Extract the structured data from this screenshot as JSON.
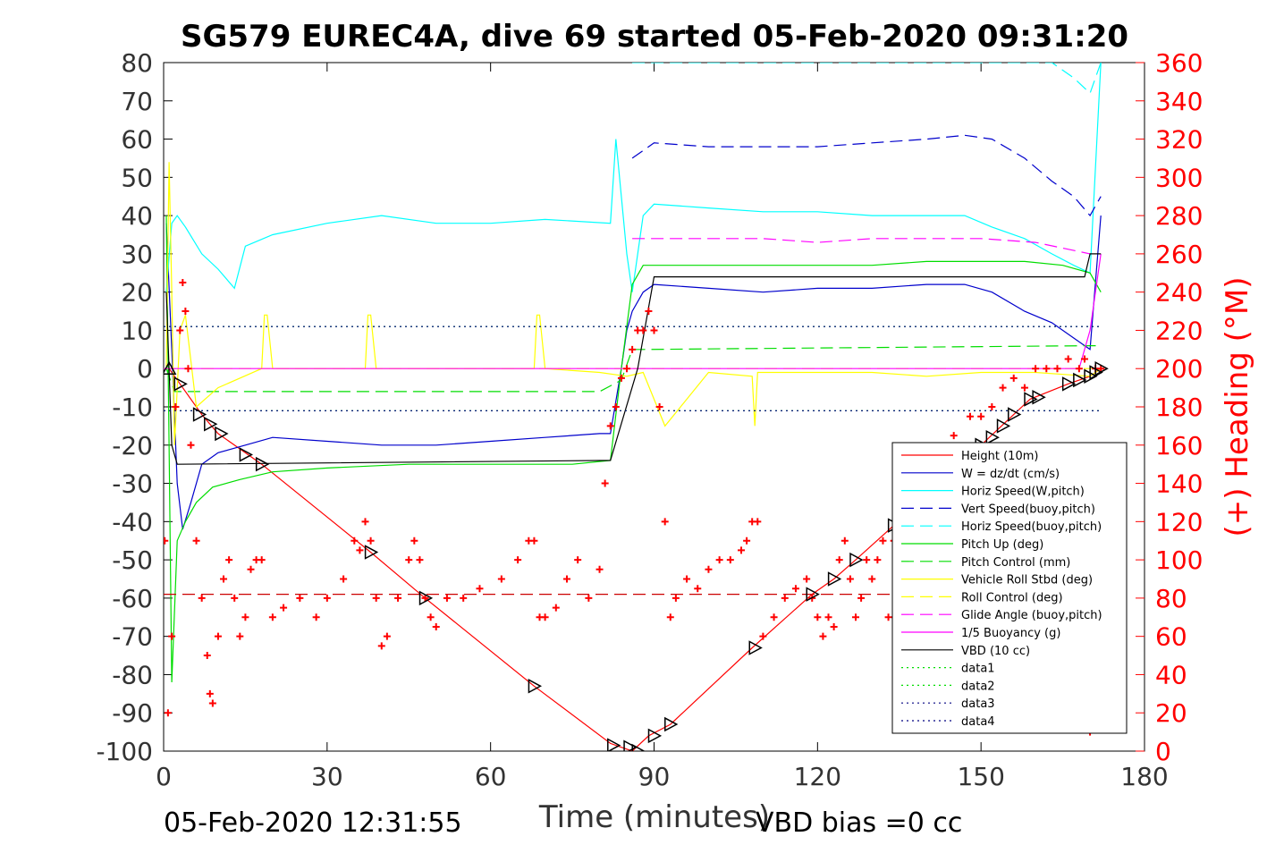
{
  "chart_data": {
    "type": "line",
    "title": "SG579 EUREC4A, dive 69 started 05-Feb-2020 09:31:20",
    "xlabel": "Time (minutes)",
    "ylabel_right": "(+) Heading (°M)",
    "ylabel_left": "",
    "xlim": [
      0,
      180
    ],
    "ylim": [
      -100,
      80
    ],
    "ylim_right": [
      0,
      360
    ],
    "x_ticks": [
      "0",
      "30",
      "60",
      "90",
      "120",
      "150",
      "180"
    ],
    "y_ticks": [
      "80",
      "70",
      "60",
      "50",
      "40",
      "30",
      "20",
      "10",
      "0",
      "-10",
      "-20",
      "-30",
      "-40",
      "-50",
      "-60",
      "-70",
      "-80",
      "-90",
      "-100"
    ],
    "y_right_ticks": [
      "360",
      "340",
      "320",
      "300",
      "280",
      "260",
      "240",
      "220",
      "200",
      "180",
      "160",
      "140",
      "120",
      "100",
      "80",
      "60",
      "40",
      "20",
      "0"
    ],
    "footer_left": "05-Feb-2020 12:31:55",
    "footer_right": "VBD bias =0 cc",
    "legend_position": "lower-right",
    "colors": {
      "height": "#ff0000",
      "w": "#0000cc",
      "horiz": "#00ffff",
      "pitch": "#00dd00",
      "roll": "#ffff00",
      "glide": "#ff00ff",
      "vbd": "#000000",
      "heading": "#ff0000"
    },
    "series": [
      {
        "name": "Height (10m)",
        "color": "#ff0000",
        "style": "solid",
        "x": [
          1,
          3,
          7,
          10,
          16,
          18,
          38,
          48,
          68,
          82,
          86,
          89,
          93,
          108,
          119,
          123,
          127,
          134,
          150,
          159,
          166,
          170,
          172
        ],
        "y": [
          0,
          -4,
          -12,
          -17,
          -23,
          -25,
          -48,
          -60,
          -83,
          -98,
          -100,
          -96,
          -93,
          -73,
          -59,
          -55,
          -50,
          -41,
          -20,
          -8,
          -4,
          -2,
          0
        ]
      },
      {
        "name": "W = dz/dt (cm/s)",
        "color": "#0000cc",
        "style": "solid",
        "x": [
          0.5,
          1.5,
          2.5,
          3.5,
          5,
          7,
          10,
          15,
          20,
          30,
          40,
          50,
          60,
          70,
          80,
          82,
          84,
          85,
          86,
          88,
          90,
          100,
          110,
          120,
          130,
          140,
          147,
          152,
          158,
          163,
          167,
          170,
          172
        ],
        "y": [
          38,
          5,
          -30,
          -42,
          -35,
          -25,
          -22,
          -20,
          -18,
          -19,
          -20,
          -20,
          -19,
          -18,
          -17,
          -17,
          0,
          10,
          15,
          20,
          22,
          21,
          20,
          21,
          21,
          22,
          22,
          20,
          15,
          12,
          8,
          5,
          40
        ]
      },
      {
        "name": "Horiz Speed(W,pitch)",
        "color": "#00ffff",
        "style": "solid",
        "x": [
          0.5,
          1.5,
          2.5,
          4,
          7,
          10,
          13,
          15,
          20,
          30,
          40,
          50,
          60,
          70,
          82,
          83,
          84,
          85,
          86,
          88,
          90,
          100,
          110,
          120,
          130,
          140,
          147,
          152,
          158,
          163,
          167,
          170,
          172
        ],
        "y": [
          20,
          38,
          40,
          37,
          30,
          26,
          21,
          32,
          35,
          38,
          40,
          38,
          38,
          39,
          38,
          60,
          45,
          30,
          20,
          40,
          43,
          42,
          41,
          41,
          40,
          40,
          40,
          37,
          34,
          30,
          27,
          25,
          80
        ]
      },
      {
        "name": "Vert Speed(buoy,pitch)",
        "color": "#0000cc",
        "style": "dashed",
        "x": [
          86,
          88,
          90,
          100,
          110,
          120,
          130,
          140,
          147,
          152,
          158,
          163,
          167,
          170,
          172
        ],
        "y": [
          55,
          57,
          59,
          58,
          58,
          58,
          59,
          60,
          61,
          60,
          55,
          49,
          45,
          40,
          45
        ]
      },
      {
        "name": "Horiz Speed(buoy,pitch)",
        "color": "#00ffff",
        "style": "dashed",
        "x": [
          86,
          88,
          163,
          167,
          170,
          172
        ],
        "y": [
          80,
          80,
          80,
          76,
          72,
          80
        ]
      },
      {
        "name": "Pitch Up (deg)",
        "color": "#00dd00",
        "style": "solid",
        "x": [
          0.5,
          1,
          1.5,
          2.5,
          4,
          6,
          9,
          14,
          20,
          30,
          45,
          60,
          75,
          82,
          84,
          86,
          88,
          90,
          100,
          110,
          120,
          130,
          140,
          150,
          158,
          165,
          170,
          172
        ],
        "y": [
          40,
          -20,
          -82,
          -45,
          -40,
          -35,
          -31,
          -29,
          -27,
          -26,
          -25,
          -25,
          -25,
          -24,
          0,
          22,
          27,
          27,
          27,
          27,
          27,
          27,
          28,
          28,
          28,
          27,
          25,
          20
        ]
      },
      {
        "name": "Pitch Control (mm)",
        "color": "#00dd00",
        "style": "dashed",
        "x": [
          0.5,
          2,
          80,
          84,
          86,
          88,
          170,
          172
        ],
        "y": [
          0,
          -6,
          -6,
          -3,
          5,
          5,
          6,
          6
        ]
      },
      {
        "name": "Vehicle Roll Stbd (deg)",
        "color": "#ffff00",
        "style": "solid",
        "x": [
          0.5,
          1,
          1.5,
          2,
          3,
          4,
          6,
          10,
          18,
          18.5,
          19,
          20,
          37,
          37.5,
          38,
          39,
          50,
          68,
          68.5,
          69,
          70,
          80,
          85,
          88,
          92,
          100,
          108,
          108.5,
          109,
          120,
          130,
          140,
          150,
          160,
          170,
          172
        ],
        "y": [
          0,
          54,
          20,
          -20,
          10,
          14,
          -10,
          -5,
          0,
          14,
          14,
          0,
          0,
          14,
          14,
          0,
          0,
          0,
          14,
          14,
          0,
          -1,
          -2,
          -1,
          -15,
          -1,
          -2,
          -15,
          -1,
          -1,
          -1,
          -2,
          -1,
          -1,
          -2,
          0
        ]
      },
      {
        "name": "Roll Control (deg)",
        "color": "#ffff00",
        "style": "dashed",
        "x": [
          0,
          172
        ],
        "y": [
          0,
          0
        ]
      },
      {
        "name": "Glide Angle (buoy,pitch)",
        "color": "#ff00ff",
        "style": "dashed",
        "x": [
          86,
          100,
          110,
          120,
          130,
          140,
          150,
          160,
          170
        ],
        "y": [
          34,
          34,
          34,
          33,
          34,
          34,
          34,
          33,
          30
        ]
      },
      {
        "name": "1/5 Buoyancy (g)",
        "color": "#ff00ff",
        "style": "solid",
        "x": [
          0,
          86,
          168,
          170,
          172
        ],
        "y": [
          0,
          0,
          0,
          10,
          30
        ]
      },
      {
        "name": "VBD (10 cc)",
        "color": "#000000",
        "style": "solid",
        "x": [
          0.5,
          1.5,
          2.5,
          82,
          87,
          90,
          169,
          170,
          172
        ],
        "y": [
          20,
          -20,
          -25,
          -24,
          0,
          24,
          24,
          30,
          30
        ]
      },
      {
        "name": "data1",
        "color": "#00dd00",
        "style": "dotted",
        "x": [
          0,
          172
        ],
        "y": [
          11,
          11
        ]
      },
      {
        "name": "data2",
        "color": "#00dd00",
        "style": "dotted",
        "x": [
          0,
          172
        ],
        "y": [
          -11,
          -11
        ]
      },
      {
        "name": "data3",
        "color": "#000080",
        "style": "dotted",
        "x": [
          0,
          172
        ],
        "y": [
          11,
          11
        ]
      },
      {
        "name": "data4",
        "color": "#000080",
        "style": "dotted",
        "x": [
          0,
          172
        ],
        "y": [
          -11,
          -11
        ]
      }
    ],
    "extra_lines": [
      {
        "label": "",
        "color": "#cc0000",
        "style": "dashed",
        "x": [
          0,
          172
        ],
        "y": [
          -59,
          -59
        ]
      }
    ],
    "markers": {
      "height_points": [
        [
          1,
          0
        ],
        [
          3,
          -4
        ],
        [
          6.5,
          -12
        ],
        [
          8.5,
          -14.5
        ],
        [
          10.5,
          -17
        ],
        [
          15,
          -22.5
        ],
        [
          18,
          -25
        ],
        [
          38,
          -48
        ],
        [
          48,
          -60
        ],
        [
          68,
          -83
        ],
        [
          82.5,
          -98.5
        ],
        [
          85.5,
          -99
        ],
        [
          87,
          -100
        ],
        [
          90,
          -96
        ],
        [
          93,
          -93
        ],
        [
          108.5,
          -73
        ],
        [
          119,
          -59
        ],
        [
          123,
          -55
        ],
        [
          127,
          -50
        ],
        [
          134,
          -41
        ],
        [
          150,
          -20
        ],
        [
          152,
          -18
        ],
        [
          154,
          -15
        ],
        [
          156,
          -12
        ],
        [
          159,
          -8
        ],
        [
          160.5,
          -7.5
        ],
        [
          166,
          -4
        ],
        [
          168,
          -3
        ],
        [
          170,
          -2
        ],
        [
          171,
          -1
        ],
        [
          172,
          0
        ]
      ]
    },
    "heading": {
      "name": "(+) Heading (°M)",
      "color": "#ff0000",
      "marker": "+",
      "x": [
        0.2,
        0.8,
        1.5,
        2.2,
        3,
        3.5,
        4,
        4.5,
        5,
        6,
        7,
        8,
        8.5,
        9,
        10,
        11,
        12,
        13,
        14,
        15,
        16,
        17,
        18,
        20,
        22,
        25,
        28,
        30,
        33,
        35,
        36,
        37,
        38,
        39,
        40,
        41,
        43,
        45,
        46,
        47,
        48,
        49,
        50,
        52,
        55,
        58,
        62,
        65,
        67,
        68,
        69,
        70,
        72,
        74,
        76,
        78,
        80,
        81,
        82,
        83,
        84,
        85,
        86,
        87,
        88,
        89,
        90,
        91,
        92,
        93,
        94,
        96,
        98,
        100,
        102,
        104,
        106,
        107,
        108,
        109,
        110,
        112,
        114,
        116,
        118,
        119,
        120,
        121,
        122,
        123,
        124,
        125,
        126,
        127,
        128,
        129,
        130,
        131,
        132,
        133,
        134,
        135,
        136,
        137,
        138,
        140,
        143,
        145,
        148,
        150,
        152,
        154,
        156,
        158,
        160,
        162,
        164,
        166,
        168,
        169,
        170,
        171,
        172
      ],
      "y": [
        110,
        20,
        60,
        180,
        220,
        245,
        230,
        200,
        160,
        110,
        80,
        50,
        30,
        25,
        60,
        90,
        100,
        80,
        60,
        70,
        95,
        100,
        100,
        70,
        75,
        80,
        70,
        80,
        90,
        110,
        105,
        120,
        110,
        80,
        55,
        60,
        80,
        100,
        110,
        100,
        80,
        70,
        65,
        80,
        80,
        85,
        90,
        100,
        110,
        110,
        70,
        70,
        75,
        90,
        100,
        80,
        95,
        140,
        170,
        180,
        195,
        200,
        210,
        220,
        220,
        230,
        220,
        180,
        120,
        70,
        80,
        90,
        85,
        95,
        100,
        100,
        105,
        110,
        120,
        120,
        60,
        70,
        80,
        85,
        90,
        80,
        70,
        60,
        70,
        65,
        100,
        110,
        90,
        70,
        80,
        100,
        90,
        100,
        110,
        70,
        110,
        115,
        120,
        125,
        120,
        120,
        150,
        165,
        175,
        175,
        180,
        190,
        195,
        190,
        200,
        200,
        200,
        205,
        200,
        205,
        10,
        200,
        200
      ]
    }
  }
}
